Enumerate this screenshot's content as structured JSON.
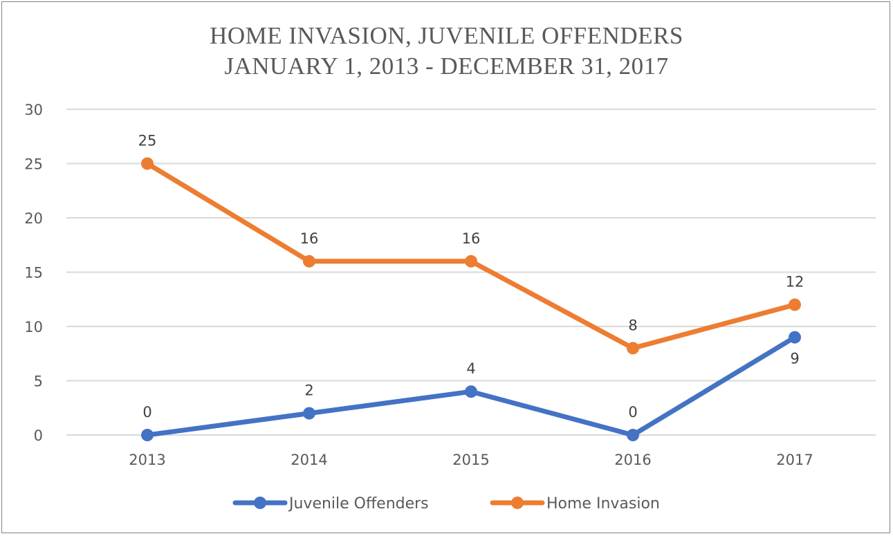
{
  "chart_data": {
    "type": "line",
    "title": [
      "HOME INVASION, JUVENILE OFFENDERS",
      "JANUARY 1, 2013 - DECEMBER 31, 2017"
    ],
    "categories": [
      "2013",
      "2014",
      "2015",
      "2016",
      "2017"
    ],
    "series": [
      {
        "name": "Juvenile Offenders",
        "values": [
          0,
          2,
          4,
          0,
          9
        ],
        "color": "#4472C4",
        "label_position": [
          "above",
          "above",
          "above",
          "above",
          "below"
        ]
      },
      {
        "name": "Home Invasion",
        "values": [
          25,
          16,
          16,
          8,
          12
        ],
        "color": "#ED7D31",
        "label_position": [
          "above",
          "above",
          "above",
          "above",
          "above"
        ]
      }
    ],
    "ylim": [
      0,
      30
    ],
    "yticks": [
      0,
      5,
      10,
      15,
      20,
      25,
      30
    ],
    "grid": true,
    "legend": "bottom",
    "xlabel": "",
    "ylabel": ""
  }
}
